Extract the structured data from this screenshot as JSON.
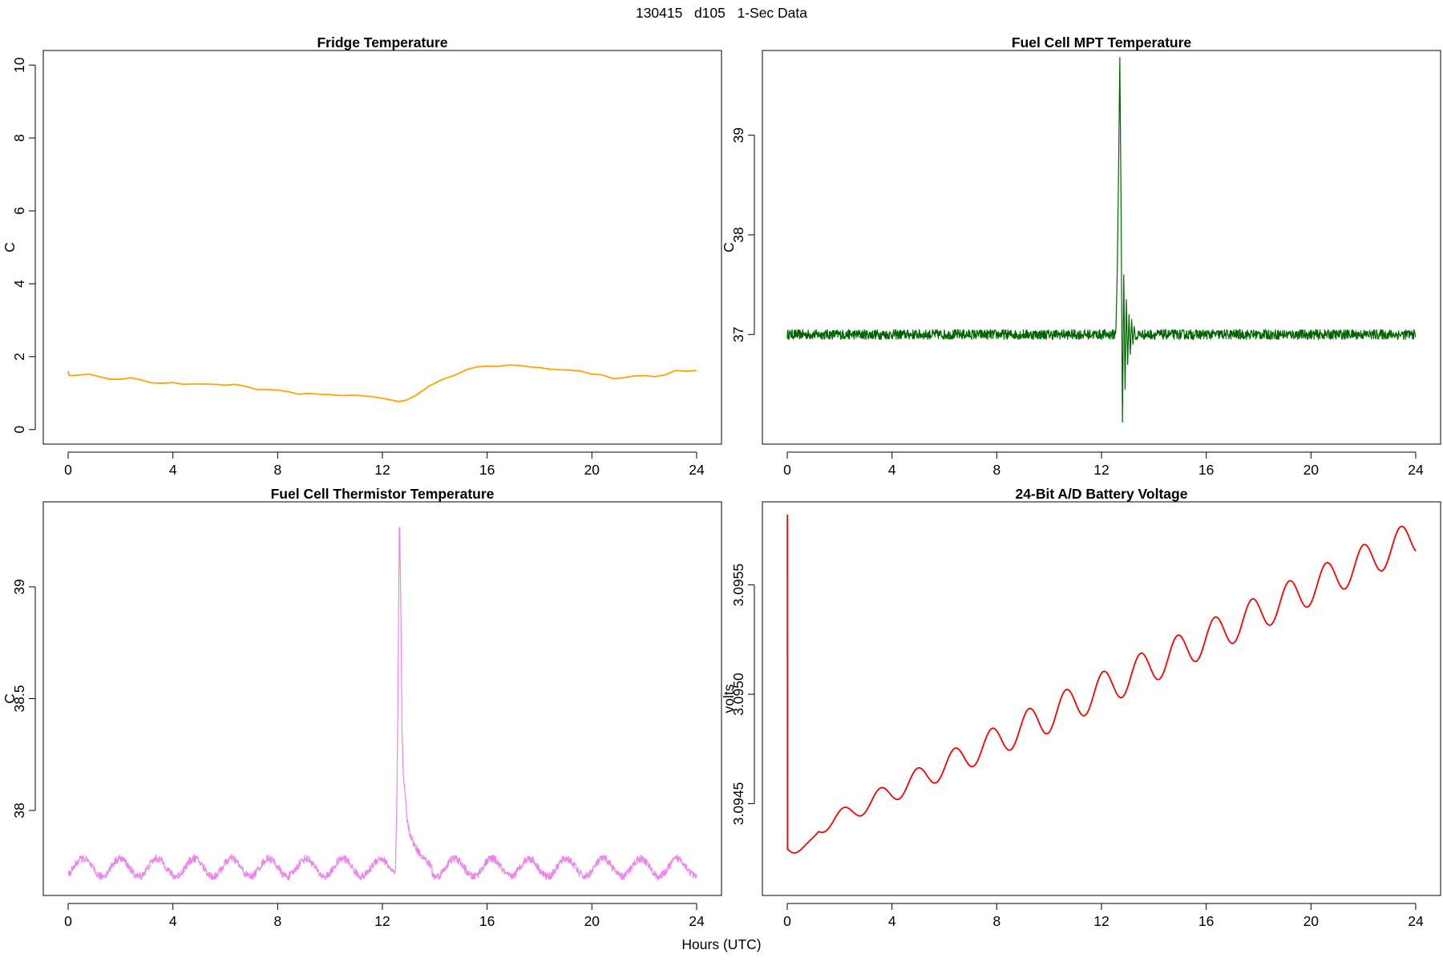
{
  "figure": {
    "main_title": "130415   d105   1-Sec Data",
    "xlabel": "Hours (UTC)"
  },
  "chart_data": [
    {
      "type": "line",
      "id": "fridge",
      "title": "Fridge Temperature",
      "ylabel": "C",
      "xlabel": "Hours (UTC)",
      "color": "#FFA500",
      "xlim": [
        -0.95,
        24.95
      ],
      "ylim": [
        -0.4,
        10.4
      ],
      "xticks": [
        0,
        4,
        8,
        12,
        16,
        20,
        24
      ],
      "yticks": [
        0,
        2,
        4,
        6,
        8,
        10
      ],
      "noise": 0.0,
      "series": [
        {
          "name": "Fridge Temperature",
          "x": [
            0,
            0.03,
            0.1,
            0.5,
            0.8,
            1.2,
            1.6,
            2.0,
            2.4,
            2.8,
            3.2,
            3.6,
            4.0,
            4.4,
            4.8,
            5.2,
            5.6,
            6.0,
            6.4,
            6.8,
            7.2,
            7.6,
            8.0,
            8.4,
            8.8,
            9.2,
            9.6,
            10.0,
            10.4,
            10.8,
            11.2,
            11.6,
            12.0,
            12.4,
            12.6,
            12.9,
            13.3,
            13.8,
            14.3,
            14.8,
            15.2,
            15.6,
            16.0,
            16.4,
            16.8,
            17.2,
            17.6,
            18.0,
            18.4,
            18.8,
            19.2,
            19.6,
            20.0,
            20.4,
            20.8,
            21.2,
            21.6,
            22.0,
            22.4,
            22.8,
            23.2,
            23.6,
            24.0
          ],
          "y": [
            1.6,
            1.5,
            1.48,
            1.5,
            1.52,
            1.45,
            1.38,
            1.38,
            1.42,
            1.36,
            1.28,
            1.27,
            1.29,
            1.24,
            1.25,
            1.25,
            1.24,
            1.22,
            1.24,
            1.18,
            1.1,
            1.1,
            1.08,
            1.04,
            0.97,
            0.99,
            0.97,
            0.96,
            0.93,
            0.94,
            0.93,
            0.9,
            0.86,
            0.8,
            0.77,
            0.8,
            0.95,
            1.2,
            1.38,
            1.5,
            1.64,
            1.72,
            1.74,
            1.73,
            1.77,
            1.76,
            1.72,
            1.7,
            1.66,
            1.64,
            1.63,
            1.6,
            1.52,
            1.5,
            1.4,
            1.42,
            1.47,
            1.48,
            1.45,
            1.5,
            1.62,
            1.6,
            1.62
          ]
        }
      ]
    },
    {
      "type": "line",
      "id": "mpt",
      "title": "Fuel Cell MPT Temperature",
      "ylabel": "C",
      "xlabel": "Hours (UTC)",
      "color": "#006400",
      "xlim": [
        -0.95,
        24.95
      ],
      "ylim": [
        35.9,
        39.85
      ],
      "xticks": [
        0,
        4,
        8,
        12,
        16,
        20,
        24
      ],
      "yticks": [
        37,
        38,
        39
      ],
      "noise": 0.05,
      "series": [
        {
          "name": "Fuel Cell MPT Temperature",
          "x": [
            0,
            12.5,
            12.55,
            12.6,
            12.65,
            12.7,
            12.75,
            12.8,
            12.85,
            12.9,
            12.95,
            13.0,
            13.05,
            13.1,
            13.15,
            13.2,
            13.25,
            13.3,
            13.4,
            24
          ],
          "y": [
            37.0,
            37.0,
            37.05,
            37.6,
            38.6,
            39.78,
            38.2,
            36.12,
            37.6,
            36.45,
            37.35,
            36.7,
            37.2,
            36.8,
            37.15,
            36.9,
            37.08,
            36.95,
            37.0,
            37.0
          ]
        }
      ]
    },
    {
      "type": "line",
      "id": "thermistor",
      "title": "Fuel Cell Thermistor Temperature",
      "ylabel": "C",
      "xlabel": "Hours (UTC)",
      "color": "#EE82EE",
      "xlim": [
        -0.95,
        24.95
      ],
      "ylim": [
        37.62,
        39.38
      ],
      "xticks": [
        0,
        4,
        8,
        12,
        16,
        20,
        24
      ],
      "yticks": [
        38.0,
        38.5,
        39.0
      ],
      "noise": 0.035,
      "oscillation": {
        "period_hours": 1.42,
        "amplitude": 0.04,
        "baseline": 37.745
      },
      "series": [
        {
          "name": "Fuel Cell Thermistor Temperature",
          "x": [
            12.5,
            12.55,
            12.6,
            12.65,
            12.7,
            12.75,
            12.8,
            12.85,
            12.9,
            12.95,
            13.0,
            13.1,
            13.2,
            13.35,
            13.5,
            13.7,
            13.9
          ],
          "y": [
            37.76,
            38.0,
            38.6,
            39.34,
            38.95,
            38.35,
            38.15,
            38.1,
            38.02,
            37.95,
            37.92,
            37.88,
            37.85,
            37.82,
            37.8,
            37.77,
            37.75
          ]
        }
      ]
    },
    {
      "type": "line",
      "id": "battery",
      "title": "24-Bit A/D Battery Voltage",
      "ylabel": "volts",
      "xlabel": "Hours (UTC)",
      "color": "#FF0000",
      "xlim": [
        -0.95,
        24.95
      ],
      "ylim": [
        3.09408,
        3.09588
      ],
      "xticks": [
        0,
        4,
        8,
        12,
        16,
        20,
        24
      ],
      "yticks": [
        3.0945,
        3.095,
        3.0955
      ],
      "yticklabels": [
        "3.0945",
        "3.0950",
        "3.0955"
      ],
      "noise": 0.0,
      "oscillation": {
        "period_hours": 1.42,
        "amplitude": 8e-05,
        "start": 3.09432,
        "end": 3.09572
      },
      "series": [
        {
          "name": "24-Bit A/D Battery Voltage",
          "x": [
            0.0,
            0.005,
            0.01,
            0.02
          ],
          "y": [
            3.09582,
            3.09582,
            3.09429,
            3.09429
          ]
        }
      ]
    }
  ]
}
